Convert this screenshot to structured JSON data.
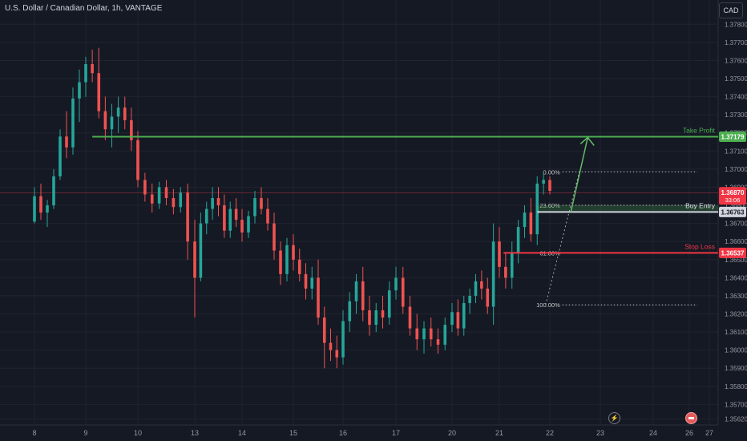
{
  "header": {
    "title": "U.S. Dollar / Canadian Dollar, 1h, VANTAGE",
    "currency": "CAD"
  },
  "icons": {
    "bolt": "lightning-icon",
    "event": "economic-event-icon"
  },
  "colors": {
    "up": "#26a69a",
    "down": "#ef5350",
    "take_profit": "#4caf50",
    "stop_loss": "#f23645",
    "entry": "#b2b5be"
  },
  "chart_data": {
    "type": "candlestick",
    "title": "U.S. Dollar / Canadian Dollar, 1h, VANTAGE",
    "ylim": [
      1.3556,
      1.3785
    ],
    "y_ticks": [
      "1.37800",
      "1.37700",
      "1.37600",
      "1.37500",
      "1.37400",
      "1.37300",
      "1.37200",
      "1.37100",
      "1.37000",
      "1.36900",
      "1.36800",
      "1.36700",
      "1.36600",
      "1.36500",
      "1.36400",
      "1.36300",
      "1.36200",
      "1.36100",
      "1.36000",
      "1.35900",
      "1.35800",
      "1.35700",
      "1.35620"
    ],
    "x_ticks": [
      {
        "label": "8",
        "t": 0
      },
      {
        "label": "9",
        "t": 24
      },
      {
        "label": "10",
        "t": 48
      },
      {
        "label": "13",
        "t": 72
      },
      {
        "label": "14",
        "t": 96
      },
      {
        "label": "15",
        "t": 120
      },
      {
        "label": "16",
        "t": 144
      },
      {
        "label": "17",
        "t": 168
      },
      {
        "label": "20",
        "t": 192
      },
      {
        "label": "21",
        "t": 216
      },
      {
        "label": "22",
        "t": 240
      },
      {
        "label": "23",
        "t": 264
      },
      {
        "label": "24",
        "t": 288
      },
      {
        "label": "26",
        "t": 312
      },
      {
        "label": "27",
        "t": 336
      }
    ],
    "series": [
      {
        "values": [
          [
            0,
            1.3671,
            1.369,
            1.367,
            1.3685
          ],
          [
            3,
            1.3685,
            1.3692,
            1.3672,
            1.3676
          ],
          [
            6,
            1.3676,
            1.3683,
            1.3668,
            1.368
          ],
          [
            9,
            1.368,
            1.37,
            1.3678,
            1.3696
          ],
          [
            12,
            1.3696,
            1.3722,
            1.3694,
            1.3718
          ],
          [
            15,
            1.3718,
            1.3732,
            1.3706,
            1.3712
          ],
          [
            18,
            1.3712,
            1.3745,
            1.3708,
            1.3739
          ],
          [
            21,
            1.3739,
            1.3755,
            1.3726,
            1.3748
          ],
          [
            24,
            1.3748,
            1.3762,
            1.374,
            1.3758
          ],
          [
            27,
            1.3758,
            1.3766,
            1.3748,
            1.3753
          ],
          [
            30,
            1.3753,
            1.3767,
            1.3728,
            1.3732
          ],
          [
            33,
            1.3732,
            1.374,
            1.3716,
            1.3722
          ],
          [
            36,
            1.3722,
            1.3736,
            1.3712,
            1.3729
          ],
          [
            39,
            1.3729,
            1.374,
            1.372,
            1.3734
          ],
          [
            42,
            1.3734,
            1.374,
            1.3722,
            1.3727
          ],
          [
            45,
            1.3727,
            1.3734,
            1.371,
            1.3716
          ],
          [
            48,
            1.3716,
            1.3721,
            1.369,
            1.3694
          ],
          [
            51,
            1.3694,
            1.3698,
            1.3682,
            1.3686
          ],
          [
            54,
            1.3686,
            1.3692,
            1.3676,
            1.3681
          ],
          [
            57,
            1.3681,
            1.3693,
            1.3678,
            1.369
          ],
          [
            60,
            1.369,
            1.3694,
            1.368,
            1.3684
          ],
          [
            63,
            1.3684,
            1.3689,
            1.3675,
            1.3679
          ],
          [
            66,
            1.3679,
            1.369,
            1.3676,
            1.3687
          ],
          [
            69,
            1.3687,
            1.3692,
            1.365,
            1.366
          ],
          [
            72,
            1.366,
            1.3672,
            1.3618,
            1.364
          ],
          [
            75,
            1.364,
            1.3676,
            1.3638,
            1.367
          ],
          [
            78,
            1.367,
            1.3682,
            1.3664,
            1.3678
          ],
          [
            81,
            1.3678,
            1.369,
            1.3672,
            1.3684
          ],
          [
            84,
            1.3684,
            1.369,
            1.3674,
            1.368
          ],
          [
            87,
            1.368,
            1.3686,
            1.3662,
            1.3666
          ],
          [
            90,
            1.3666,
            1.3682,
            1.3662,
            1.3678
          ],
          [
            93,
            1.3678,
            1.3684,
            1.3668,
            1.3672
          ],
          [
            96,
            1.3672,
            1.3678,
            1.366,
            1.3665
          ],
          [
            99,
            1.3665,
            1.3677,
            1.3662,
            1.3674
          ],
          [
            102,
            1.3674,
            1.3688,
            1.367,
            1.3684
          ],
          [
            105,
            1.3684,
            1.369,
            1.3675,
            1.3678
          ],
          [
            108,
            1.3678,
            1.3684,
            1.3666,
            1.367
          ],
          [
            111,
            1.367,
            1.3676,
            1.365,
            1.3655
          ],
          [
            114,
            1.3655,
            1.366,
            1.3636,
            1.3642
          ],
          [
            117,
            1.3642,
            1.3662,
            1.3638,
            1.3658
          ],
          [
            120,
            1.3658,
            1.3664,
            1.3644,
            1.365
          ],
          [
            123,
            1.365,
            1.3656,
            1.3638,
            1.3642
          ],
          [
            126,
            1.3642,
            1.3648,
            1.3628,
            1.3634
          ],
          [
            129,
            1.3634,
            1.3646,
            1.3628,
            1.364
          ],
          [
            132,
            1.364,
            1.365,
            1.3614,
            1.3618
          ],
          [
            135,
            1.3618,
            1.3624,
            1.359,
            1.3604
          ],
          [
            138,
            1.3604,
            1.3612,
            1.3594,
            1.36
          ],
          [
            141,
            1.36,
            1.3608,
            1.359,
            1.3596
          ],
          [
            144,
            1.3596,
            1.3622,
            1.3592,
            1.3616
          ],
          [
            147,
            1.3616,
            1.3632,
            1.361,
            1.3627
          ],
          [
            150,
            1.3627,
            1.3642,
            1.362,
            1.3638
          ],
          [
            153,
            1.3638,
            1.3646,
            1.3616,
            1.3622
          ],
          [
            156,
            1.3622,
            1.363,
            1.3608,
            1.3614
          ],
          [
            159,
            1.3614,
            1.3626,
            1.361,
            1.3622
          ],
          [
            162,
            1.3622,
            1.363,
            1.3612,
            1.3618
          ],
          [
            165,
            1.3618,
            1.3638,
            1.3614,
            1.3633
          ],
          [
            168,
            1.3633,
            1.3646,
            1.3628,
            1.364
          ],
          [
            171,
            1.364,
            1.3646,
            1.362,
            1.3624
          ],
          [
            174,
            1.3624,
            1.363,
            1.3608,
            1.3612
          ],
          [
            177,
            1.3612,
            1.362,
            1.36,
            1.3606
          ],
          [
            180,
            1.3606,
            1.3616,
            1.3598,
            1.3612
          ],
          [
            183,
            1.3612,
            1.3618,
            1.3602,
            1.3606
          ],
          [
            186,
            1.3606,
            1.3612,
            1.3598,
            1.3603
          ],
          [
            189,
            1.3603,
            1.3618,
            1.36,
            1.3614
          ],
          [
            192,
            1.3614,
            1.3626,
            1.361,
            1.3621
          ],
          [
            195,
            1.3621,
            1.3628,
            1.3608,
            1.3612
          ],
          [
            198,
            1.3612,
            1.363,
            1.3608,
            1.3626
          ],
          [
            201,
            1.3626,
            1.3634,
            1.362,
            1.363
          ],
          [
            204,
            1.363,
            1.3642,
            1.3626,
            1.3638
          ],
          [
            207,
            1.3638,
            1.3644,
            1.3628,
            1.3634
          ],
          [
            210,
            1.3634,
            1.364,
            1.362,
            1.3624
          ],
          [
            213,
            1.3624,
            1.367,
            1.3614,
            1.366
          ],
          [
            216,
            1.366,
            1.3668,
            1.364,
            1.3646
          ],
          [
            219,
            1.3646,
            1.3654,
            1.3634,
            1.364
          ],
          [
            222,
            1.364,
            1.366,
            1.3634,
            1.3654
          ],
          [
            225,
            1.3654,
            1.3672,
            1.3648,
            1.3668
          ],
          [
            228,
            1.3668,
            1.368,
            1.3662,
            1.3676
          ],
          [
            231,
            1.3676,
            1.3684,
            1.366,
            1.3664
          ],
          [
            234,
            1.3664,
            1.3696,
            1.3658,
            1.3692
          ],
          [
            237,
            1.3692,
            1.3698,
            1.3686,
            1.3694
          ],
          [
            240,
            1.3694,
            1.3696,
            1.3686,
            1.3688
          ]
        ]
      }
    ],
    "last_price": {
      "value": "1.36870",
      "countdown": "33:06"
    },
    "annotations": {
      "take_profit": {
        "label": "Take Profit",
        "value": 1.37179,
        "price_label": "1.37179"
      },
      "buy_entry": {
        "label": "Buy Entry",
        "value": 1.36763,
        "price_label": "1.36763"
      },
      "stop_loss": {
        "label": "Stop Loss",
        "value": 1.36537,
        "price_label": "1.36537"
      },
      "fib_levels": [
        {
          "label": "0.00%",
          "value": 1.36985
        },
        {
          "label": "23.60%",
          "value": 1.368
        },
        {
          "label": "61.80%",
          "value": 1.36537
        },
        {
          "label": "100.00%",
          "value": 1.3625
        }
      ]
    }
  }
}
